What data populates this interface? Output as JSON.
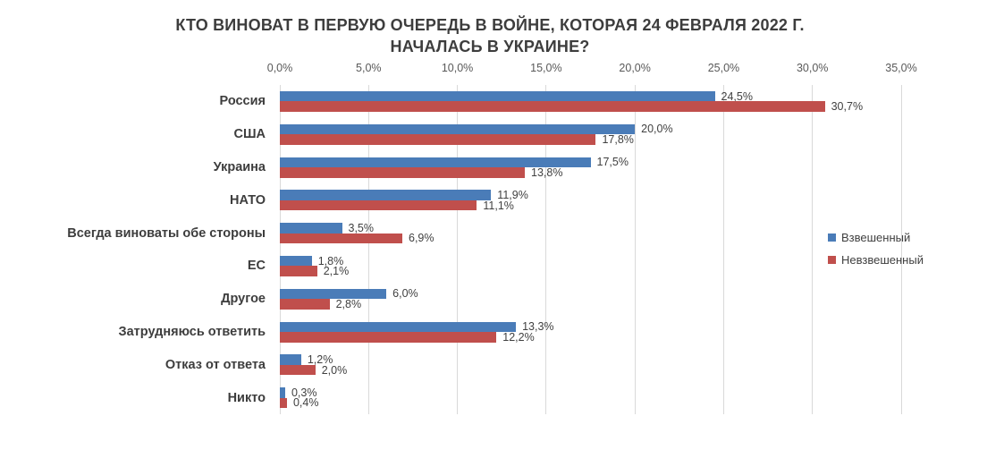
{
  "chart_data": {
    "type": "bar",
    "orientation": "horizontal",
    "title": "КТО ВИНОВАТ В ПЕРВУЮ ОЧЕРЕДЬ В ВОЙНЕ, КОТОРАЯ 24 ФЕВРАЛЯ 2022 Г. НАЧАЛАСЬ В УКРАИНЕ?",
    "title_lines": [
      "КТО ВИНОВАТ В ПЕРВУЮ ОЧЕРЕДЬ В ВОЙНЕ, КОТОРАЯ 24 ФЕВРАЛЯ 2022 Г.",
      "НАЧАЛАСЬ В УКРАИНЕ?"
    ],
    "categories": [
      "Россия",
      "США",
      "Украина",
      "НАТО",
      "Всегда виноваты обе стороны",
      "ЕС",
      "Другое",
      "Затрудняюсь ответить",
      "Отказ от ответа",
      "Никто"
    ],
    "series": [
      {
        "name": "Взвешенный",
        "color": "#4a7cb8",
        "values": [
          24.5,
          20.0,
          17.5,
          11.9,
          3.5,
          1.8,
          6.0,
          13.3,
          1.2,
          0.3
        ],
        "labels": [
          "24,5%",
          "20,0%",
          "17,5%",
          "11,9%",
          "3,5%",
          "1,8%",
          "6,0%",
          "13,3%",
          "1,2%",
          "0,3%"
        ]
      },
      {
        "name": "Невзвешенный",
        "color": "#c04f4c",
        "values": [
          30.7,
          17.8,
          13.8,
          11.1,
          6.9,
          2.1,
          2.8,
          12.2,
          2.0,
          0.4
        ],
        "labels": [
          "30,7%",
          "17,8%",
          "13,8%",
          "11,1%",
          "6,9%",
          "2,1%",
          "2,8%",
          "12,2%",
          "2,0%",
          "0,4%"
        ]
      }
    ],
    "x_axis": {
      "min": 0,
      "max": 35,
      "tick_step": 5,
      "tick_labels": [
        "0,0%",
        "5,0%",
        "10,0%",
        "15,0%",
        "20,0%",
        "25,0%",
        "30,0%",
        "35,0%"
      ]
    },
    "grid": true,
    "legend_position": "right",
    "colors": {
      "gridline": "#d9d9d9",
      "title_text": "#3d3d3d",
      "tick_text": "#595959",
      "value_text": "#404040"
    }
  }
}
